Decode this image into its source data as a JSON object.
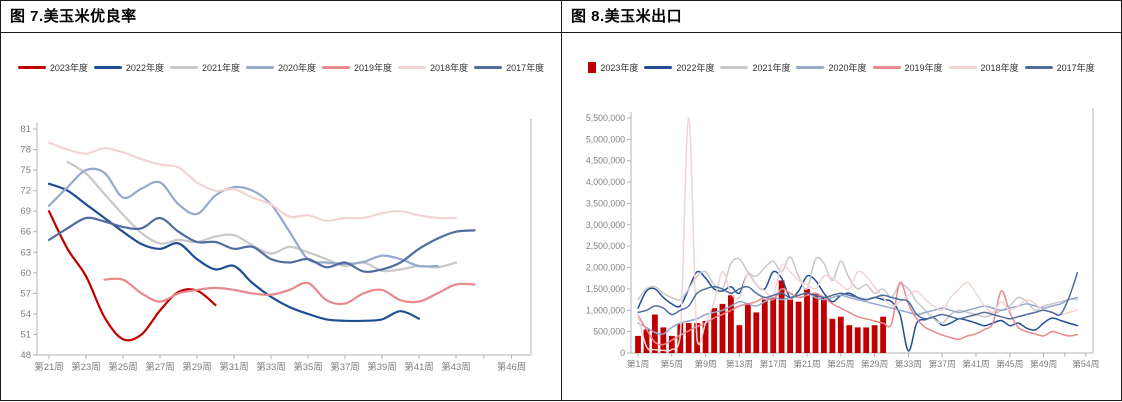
{
  "panels": [
    {
      "title": "图 7.美玉米优良率",
      "legend": [
        {
          "label": "2023年度",
          "color": "#c00000",
          "marker": "line"
        },
        {
          "label": "2022年度",
          "color": "#1f4e96",
          "marker": "line"
        },
        {
          "label": "2021年度",
          "color": "#c8c8c8",
          "marker": "line"
        },
        {
          "label": "2020年度",
          "color": "#95a8cd",
          "marker": "line"
        },
        {
          "label": "2019年度",
          "color": "#e8898e",
          "marker": "line"
        },
        {
          "label": "2018年度",
          "color": "#f2d4d4",
          "marker": "line"
        },
        {
          "label": "2017年度",
          "color": "#4f6d9f",
          "marker": "line"
        }
      ]
    },
    {
      "title": "图 8.美玉米出口",
      "legend": [
        {
          "label": "2023年度",
          "color": "#c00000",
          "marker": "square"
        },
        {
          "label": "2022年度",
          "color": "#1f4e96",
          "marker": "line"
        },
        {
          "label": "2021年度",
          "color": "#c8c8c8",
          "marker": "line"
        },
        {
          "label": "2020年度",
          "color": "#95a8cd",
          "marker": "line"
        },
        {
          "label": "2019年度",
          "color": "#e8898e",
          "marker": "line"
        },
        {
          "label": "2018年度",
          "color": "#f2d4d4",
          "marker": "line"
        },
        {
          "label": "2017年度",
          "color": "#4f6d9f",
          "marker": "line"
        }
      ]
    }
  ],
  "chart_data": [
    {
      "type": "line",
      "title": "图 7.美玉米优良率",
      "x_axis": {
        "unit": "week",
        "tick_weeks": [
          21,
          23,
          25,
          27,
          29,
          31,
          33,
          35,
          37,
          39,
          41,
          43,
          46
        ],
        "tick_labels": [
          "第21周",
          "第23周",
          "第25周",
          "第27周",
          "第29周",
          "第31周",
          "第33周",
          "第35周",
          "第37周",
          "第39周",
          "第41周",
          "第43周",
          "第46周"
        ],
        "minor_tick_weeks": [
          44.5
        ]
      },
      "y_axis": {
        "min": 48,
        "max": 81,
        "tick_values": [
          48,
          51,
          54,
          57,
          60,
          63,
          66,
          69,
          72,
          75,
          78,
          81
        ],
        "tick_labels": [
          "48",
          "51",
          "54",
          "57",
          "60",
          "63",
          "66",
          "69",
          "72",
          "75",
          "78",
          "81"
        ]
      },
      "series": [
        {
          "name": "2023年度",
          "color": "#c00000",
          "start_week": 21,
          "values": [
            69,
            63.5,
            59.5,
            53.5,
            50.3,
            51,
            54.5,
            57.2,
            57.4,
            55.3
          ]
        },
        {
          "name": "2022年度",
          "color": "#1f4e96",
          "start_week": 21,
          "values": [
            73,
            72,
            70,
            68,
            66,
            64.2,
            63.5,
            64.3,
            62,
            60.5,
            61,
            58.5,
            56.5,
            55,
            54,
            53.2,
            53,
            53,
            53.2,
            54.4,
            53.3
          ]
        },
        {
          "name": "2021年度",
          "color": "#c8c8c8",
          "start_week": 22,
          "values": [
            76.2,
            74.5,
            71.5,
            68.5,
            65.8,
            64.3,
            64.8,
            64.5,
            65.3,
            65.5,
            64,
            62.8,
            63.8,
            63,
            62,
            61,
            61.5,
            60.3,
            60.5,
            61,
            60.8,
            61.5
          ]
        },
        {
          "name": "2020年度",
          "color": "#95a8cd",
          "start_week": 21,
          "values": [
            69.8,
            72.5,
            75,
            74.6,
            71,
            72.3,
            73.2,
            70,
            68.6,
            71.3,
            72.5,
            72,
            70,
            66,
            62,
            61.5,
            61.3,
            61.6,
            62.5,
            62,
            61,
            61
          ]
        },
        {
          "name": "2019年度",
          "color": "#e8898e",
          "start_week": 24,
          "values": [
            59,
            59,
            57,
            55.8,
            57,
            57.5,
            57.8,
            57.5,
            57,
            56.8,
            57.5,
            58.5,
            56,
            55.5,
            57,
            57.5,
            56,
            55.8,
            57,
            58.3,
            58.3
          ]
        },
        {
          "name": "2018年度",
          "color": "#f2d4d4",
          "start_week": 21,
          "values": [
            79,
            78,
            77.4,
            78.2,
            77.6,
            76.6,
            75.8,
            75.4,
            73.2,
            72,
            72.2,
            71,
            70,
            68.2,
            68.4,
            67.6,
            68,
            68,
            68.7,
            69,
            68.4,
            68,
            68
          ]
        },
        {
          "name": "2017年度",
          "color": "#4f6d9f",
          "start_week": 21,
          "values": [
            64.8,
            66.5,
            68,
            67.5,
            66.7,
            66.5,
            68,
            66,
            64.5,
            64.5,
            63.5,
            63.8,
            62,
            61.5,
            62,
            60.8,
            61.5,
            60.2,
            60.5,
            61.5,
            63.5,
            65,
            66,
            66.2
          ]
        }
      ]
    },
    {
      "type": "bar+line",
      "title": "图 8.美玉米出口",
      "x_axis": {
        "unit": "week",
        "tick_weeks": [
          1,
          5,
          9,
          13,
          17,
          21,
          25,
          29,
          33,
          37,
          41,
          45,
          49,
          54
        ],
        "tick_labels": [
          "第1周",
          "第5周",
          "第9周",
          "第13周",
          "第17周",
          "第21周",
          "第25周",
          "第29周",
          "第33周",
          "第37周",
          "第41周",
          "第45周",
          "第49周",
          "第54周"
        ],
        "minor_tick_weeks": [
          51.5
        ]
      },
      "y_axis": {
        "min": 0,
        "max": 5500000,
        "tick_values": [
          0,
          500000,
          1000000,
          1500000,
          2000000,
          2500000,
          3000000,
          3500000,
          4000000,
          4500000,
          5000000,
          5500000
        ],
        "tick_labels": [
          "0",
          "500,000",
          "1,000,000",
          "1,500,000",
          "2,000,000",
          "2,500,000",
          "3,000,000",
          "3,500,000",
          "4,000,000",
          "4,500,000",
          "5,000,000",
          "5,500,000"
        ]
      },
      "bar_series": {
        "name": "2023年度",
        "color": "#c00000",
        "start_week": 1,
        "values": [
          400000,
          550000,
          900000,
          600000,
          400000,
          700000,
          700000,
          700000,
          750000,
          1050000,
          1150000,
          1350000,
          650000,
          1150000,
          950000,
          1250000,
          1300000,
          1700000,
          1250000,
          1200000,
          1500000,
          1400000,
          1300000,
          800000,
          850000,
          650000,
          600000,
          600000,
          650000,
          850000
        ]
      },
      "series": [
        {
          "name": "2022年度",
          "color": "#1f4e96",
          "start_week": 1,
          "values": [
            1050000,
            1450000,
            1500000,
            1300000,
            1150000,
            1100000,
            1500000,
            1900000,
            1750000,
            1500000,
            1450000,
            1550000,
            1400000,
            1850000,
            1600000,
            1500000,
            1900000,
            1750000,
            1300000,
            1450000,
            1800000,
            1700000,
            1400000,
            1200000,
            1350000,
            1400000,
            1300000,
            1250000,
            1300000,
            1250000,
            1200000,
            900000,
            50000,
            700000,
            780000,
            820000,
            650000,
            700000,
            800000,
            760000,
            700000,
            640000,
            700000,
            760000,
            640000,
            700000,
            580000,
            540000,
            700000,
            820000,
            760000,
            700000,
            640000
          ]
        },
        {
          "name": "2021年度",
          "color": "#c8c8c8",
          "start_week": 1,
          "values": [
            1250000,
            1500000,
            1550000,
            1400000,
            1300000,
            1250000,
            1500000,
            1800000,
            1900000,
            1600000,
            1500000,
            2100000,
            2200000,
            1900000,
            1800000,
            2000000,
            2150000,
            1900000,
            2250000,
            1800000,
            1500000,
            2200000,
            2100000,
            1700000,
            2150000,
            1750000,
            1500000,
            1600000,
            1400000,
            1500000,
            1300000,
            1600000,
            1500000,
            1200000,
            1000000,
            800000,
            700000,
            900000,
            1000000,
            950000,
            900000,
            850000,
            900000,
            1000000,
            1100000,
            1300000,
            1200000,
            1000000,
            1100000,
            1150000,
            1200000,
            1250000,
            1250000
          ]
        },
        {
          "name": "2020年度",
          "color": "#95a8cd",
          "start_week": 1,
          "values": [
            700000,
            600000,
            480000,
            450000,
            600000,
            700000,
            750000,
            800000,
            900000,
            950000,
            1000000,
            1100000,
            1200000,
            1150000,
            1100000,
            1200000,
            1300000,
            1250000,
            1300000,
            1350000,
            1400000,
            1300000,
            1250000,
            1300000,
            1350000,
            1300000,
            1250000,
            1200000,
            1150000,
            1100000,
            1050000,
            1000000,
            950000,
            900000,
            950000,
            1000000,
            1050000,
            1000000,
            950000,
            1000000,
            1050000,
            1100000,
            1050000,
            1000000,
            1050000,
            1100000,
            1150000,
            1100000,
            1050000,
            1100000,
            1150000,
            1250000,
            1300000
          ]
        },
        {
          "name": "2019年度",
          "color": "#e8898e",
          "start_week": 1,
          "values": [
            880000,
            550000,
            250000,
            200000,
            300000,
            420000,
            520000,
            620000,
            700000,
            820000,
            900000,
            1000000,
            1100000,
            1150000,
            1200000,
            1300000,
            1250000,
            1500000,
            1400000,
            1300000,
            1350000,
            1400000,
            1300000,
            1150000,
            1050000,
            950000,
            850000,
            800000,
            750000,
            700000,
            680000,
            1650000,
            1150000,
            800000,
            600000,
            500000,
            420000,
            360000,
            320000,
            400000,
            450000,
            550000,
            700000,
            1450000,
            950000,
            600000,
            500000,
            450000,
            400000,
            500000,
            450000,
            400000,
            430000
          ]
        },
        {
          "name": "2018年度",
          "color": "#f2d4d4",
          "start_week": 1,
          "values": [
            870000,
            150000,
            80000,
            60000,
            80000,
            400000,
            5500000,
            300000,
            700000,
            1200000,
            1900000,
            1400000,
            1300000,
            1850000,
            1600000,
            1450000,
            1350000,
            2050000,
            1900000,
            1700000,
            1600000,
            1500000,
            1800000,
            1750000,
            1600000,
            1500000,
            1900000,
            1800000,
            1550000,
            1300000,
            1100000,
            1200000,
            1350000,
            1450000,
            1250000,
            1100000,
            1000000,
            1300000,
            1500000,
            1650000,
            1400000,
            1100000,
            950000,
            1200000,
            1000000,
            1100000,
            1250000,
            1150000,
            1000000,
            950000,
            900000,
            950000,
            1000000
          ]
        },
        {
          "name": "2017年度",
          "color": "#4f6d9f",
          "start_week": 1,
          "values": [
            950000,
            1000000,
            1100000,
            1050000,
            900000,
            1000000,
            1100000,
            1400000,
            1500000,
            1550000,
            1500000,
            1400000,
            1500000,
            1550000,
            1400000,
            1300000,
            1350000,
            1400000,
            1300000,
            1350000,
            1400000,
            1350000,
            1300000,
            1350000,
            1400000,
            1350000,
            1300000,
            1250000,
            1300000,
            1350000,
            1300000,
            1250000,
            1200000,
            900000,
            800000,
            850000,
            900000,
            850000,
            800000,
            850000,
            900000,
            950000,
            900000,
            850000,
            800000,
            850000,
            900000,
            950000,
            1000000,
            950000,
            900000,
            1300000,
            1880000
          ]
        }
      ]
    }
  ]
}
